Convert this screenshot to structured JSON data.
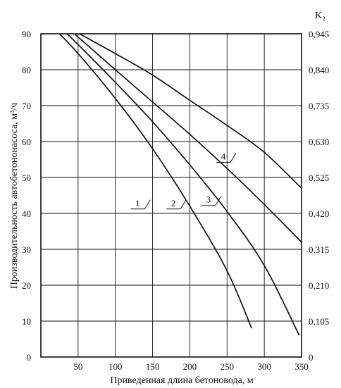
{
  "chart_data": {
    "type": "line",
    "title": "",
    "xlabel": "Приведенная длина бетоновода, м",
    "ylabel": "Производительность автобетононасоса, м³/ч",
    "y2label": "K₂",
    "xlim": [
      0,
      350
    ],
    "ylim": [
      0,
      90
    ],
    "grid": true,
    "x_ticks": [
      "50",
      "100",
      "150",
      "200",
      "250",
      "300",
      "350"
    ],
    "y_ticks": [
      "0",
      "10",
      "20",
      "30",
      "40",
      "50",
      "60",
      "70",
      "80",
      "90"
    ],
    "y2_ticks": [
      "0",
      "0,105",
      "0,210",
      "0,315",
      "0,420",
      "0,525",
      "0,630",
      "0,735",
      "0,840",
      "0,945"
    ],
    "series": [
      {
        "name": "1",
        "x": [
          25,
          50,
          100,
          150,
          200,
          250,
          283
        ],
        "y": [
          90,
          84.5,
          72,
          58,
          42,
          24,
          8
        ]
      },
      {
        "name": "2",
        "x": [
          35,
          50,
          100,
          150,
          200,
          250,
          300,
          347
        ],
        "y": [
          90,
          87,
          76.5,
          65.5,
          53.5,
          40.5,
          25.5,
          6
        ]
      },
      {
        "name": "3",
        "x": [
          45,
          100,
          150,
          200,
          250,
          300,
          350
        ],
        "y": [
          90,
          80,
          71,
          62,
          52.5,
          42.5,
          32
        ]
      },
      {
        "name": "4",
        "x": [
          52,
          100,
          150,
          200,
          250,
          300,
          350
        ],
        "y": [
          90,
          84.5,
          78.5,
          71.5,
          64.5,
          57,
          47
        ]
      }
    ],
    "series_label_positions": [
      {
        "name": "1",
        "x": 130,
        "y": 42
      },
      {
        "name": "2",
        "x": 178,
        "y": 42
      },
      {
        "name": "3",
        "x": 225,
        "y": 43
      },
      {
        "name": "4",
        "x": 245,
        "y": 55
      }
    ]
  }
}
